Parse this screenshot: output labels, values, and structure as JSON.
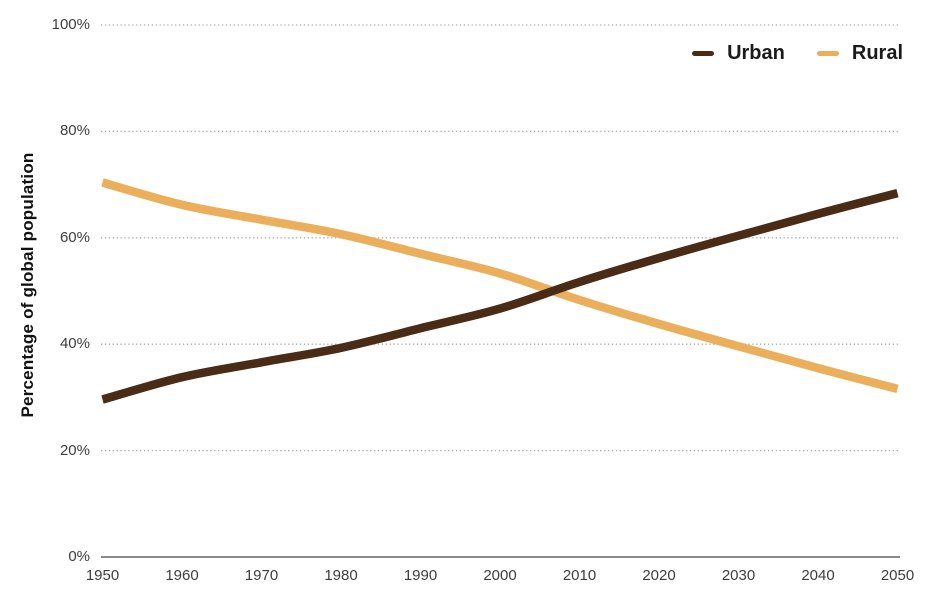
{
  "chart_data": {
    "type": "line",
    "title": "",
    "ylabel": "Percentage of global population",
    "xlabel": "",
    "x": [
      1950,
      1960,
      1970,
      1980,
      1990,
      2000,
      2010,
      2020,
      2030,
      2040,
      2050
    ],
    "x_tick_labels": [
      "1950",
      "1960",
      "1970",
      "1980",
      "1990",
      "2000",
      "2010",
      "2020",
      "2030",
      "2040",
      "2050"
    ],
    "xlim": [
      1950,
      2050
    ],
    "y_ticks": [
      0,
      20,
      40,
      60,
      80,
      100
    ],
    "y_tick_labels": [
      "0%",
      "20%",
      "40%",
      "60%",
      "80%",
      "100%"
    ],
    "ylim": [
      0,
      100
    ],
    "grid": "horizontal-dotted",
    "legend_position": "top-right",
    "series": [
      {
        "name": "Urban",
        "color": "#4A2C16",
        "values": [
          29.6,
          33.8,
          36.6,
          39.3,
          43.0,
          46.7,
          51.7,
          56.2,
          60.4,
          64.5,
          68.4
        ]
      },
      {
        "name": "Rural",
        "color": "#EBAF5B",
        "values": [
          70.4,
          66.2,
          63.4,
          60.7,
          57.0,
          53.3,
          48.3,
          43.8,
          39.6,
          35.5,
          31.6
        ]
      }
    ]
  }
}
